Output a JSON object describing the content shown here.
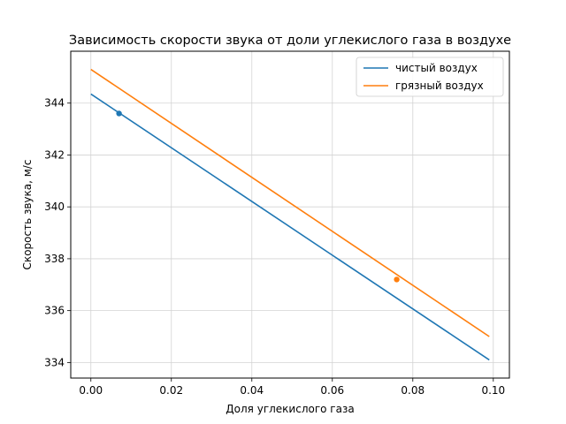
{
  "chart_data": {
    "type": "line",
    "title": "Зависимость скорости звука от доли углекислого газа в воздухе",
    "xlabel": "Доля углекислого газа",
    "ylabel": "Скорость звука, м/с",
    "xlim": [
      -0.005,
      0.104
    ],
    "ylim": [
      333.4,
      346.0
    ],
    "xticks": [
      0.0,
      0.02,
      0.04,
      0.06,
      0.08,
      0.1
    ],
    "xtick_labels": [
      "0.00",
      "0.02",
      "0.04",
      "0.06",
      "0.08",
      "0.10"
    ],
    "yticks": [
      334,
      336,
      338,
      340,
      342,
      344
    ],
    "ytick_labels": [
      "334",
      "336",
      "338",
      "340",
      "342",
      "344"
    ],
    "grid": true,
    "legend_position": "top-right",
    "series": [
      {
        "name": "чистый воздух",
        "color": "#1f77b4",
        "x": [
          0.0,
          0.099
        ],
        "y": [
          344.35,
          334.1
        ],
        "point": {
          "x": 0.007,
          "y": 343.6
        }
      },
      {
        "name": "грязный воздух",
        "color": "#ff7f0e",
        "x": [
          0.0,
          0.099
        ],
        "y": [
          345.3,
          335.0
        ],
        "point": {
          "x": 0.076,
          "y": 337.2
        }
      }
    ]
  }
}
